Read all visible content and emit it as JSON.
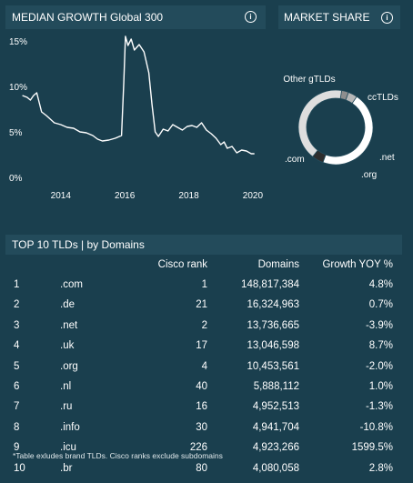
{
  "growth_panel": {
    "title": "MEDIAN GROWTH Global 300",
    "info_icon": "info-icon"
  },
  "market_panel": {
    "title": "MARKET SHARE",
    "info_icon": "info-icon"
  },
  "chart_data": [
    {
      "type": "line",
      "title": "MEDIAN GROWTH Global 300",
      "xlabel": "",
      "ylabel": "",
      "x_ticks": [
        "2014",
        "2016",
        "2018",
        "2020"
      ],
      "y_ticks": [
        "0%",
        "5%",
        "10%",
        "15%"
      ],
      "ylim": [
        0,
        15.5
      ],
      "xlim": [
        2012.5,
        2020.4
      ],
      "grid": false,
      "line_color": "#ffffff",
      "series": [
        {
          "x": [
            2012.8,
            2012.95,
            2013.05,
            2013.15,
            2013.25,
            2013.4,
            2013.55,
            2013.8,
            2014.0,
            2014.2,
            2014.4,
            2014.6,
            2014.8,
            2015.0,
            2015.15,
            2015.3,
            2015.5,
            2015.7,
            2015.9,
            2015.97,
            2016.02,
            2016.1,
            2016.2,
            2016.3,
            2016.45,
            2016.6,
            2016.75,
            2016.85,
            2016.95,
            2017.05,
            2017.2,
            2017.35,
            2017.5,
            2017.65,
            2017.8,
            2017.95,
            2018.1,
            2018.25,
            2018.4,
            2018.55,
            2018.7,
            2018.85,
            2019.0,
            2019.1,
            2019.2,
            2019.35,
            2019.5,
            2019.65,
            2019.8,
            2019.95,
            2020.05
          ],
          "y": [
            9.0,
            8.8,
            8.5,
            9.0,
            9.3,
            7.2,
            6.8,
            6.0,
            5.8,
            5.5,
            5.4,
            5.0,
            4.9,
            4.6,
            4.2,
            4.0,
            4.1,
            4.3,
            4.6,
            10.5,
            15.5,
            14.5,
            15.2,
            14.0,
            14.6,
            13.8,
            11.5,
            8.0,
            5.0,
            4.5,
            5.3,
            5.1,
            5.8,
            5.5,
            5.2,
            5.6,
            5.7,
            5.5,
            6.0,
            5.2,
            4.8,
            4.3,
            3.6,
            3.9,
            3.2,
            3.4,
            2.7,
            3.0,
            2.9,
            2.6,
            2.6
          ]
        }
      ]
    },
    {
      "type": "pie",
      "title": "MARKET SHARE",
      "style": "donut",
      "categories": [
        ".com",
        ".net",
        ".org",
        "ccTLDs",
        "Other gTLDs"
      ],
      "values": [
        46,
        4,
        3,
        42,
        5
      ],
      "colors": [
        "#ffffff",
        "#b7b7b7",
        "#8e8e8e",
        "#dedede",
        "#2e2e2e"
      ],
      "labels": [
        "Other gTLDs",
        "ccTLDs",
        ".net",
        ".org",
        ".com"
      ]
    }
  ],
  "table_panel": {
    "title": "TOP 10 TLDs | by Domains",
    "columns": [
      "",
      "",
      "Cisco rank",
      "Domains",
      "Growth YOY %"
    ],
    "rows": [
      {
        "rank": "1",
        "tld": ".com",
        "cisco": "1",
        "domains": "148,817,384",
        "growth": "4.8%"
      },
      {
        "rank": "2",
        "tld": ".de",
        "cisco": "21",
        "domains": "16,324,963",
        "growth": "0.7%"
      },
      {
        "rank": "3",
        "tld": ".net",
        "cisco": "2",
        "domains": "13,736,665",
        "growth": "-3.9%"
      },
      {
        "rank": "4",
        "tld": ".uk",
        "cisco": "17",
        "domains": "13,046,598",
        "growth": "8.7%"
      },
      {
        "rank": "5",
        "tld": ".org",
        "cisco": "4",
        "domains": "10,453,561",
        "growth": "-2.0%"
      },
      {
        "rank": "6",
        "tld": ".nl",
        "cisco": "40",
        "domains": "5,888,112",
        "growth": "1.0%"
      },
      {
        "rank": "7",
        "tld": ".ru",
        "cisco": "16",
        "domains": "4,952,513",
        "growth": "-1.3%"
      },
      {
        "rank": "8",
        "tld": ".info",
        "cisco": "30",
        "domains": "4,941,704",
        "growth": "-10.8%"
      },
      {
        "rank": "9",
        "tld": ".icu",
        "cisco": "226",
        "domains": "4,923,266",
        "growth": "1599.5%"
      },
      {
        "rank": "10",
        "tld": ".br",
        "cisco": "80",
        "domains": "4,080,058",
        "growth": "2.8%"
      }
    ],
    "footnote": "*Table exludes brand TLDs.  Cisco ranks exclude subdomains"
  }
}
